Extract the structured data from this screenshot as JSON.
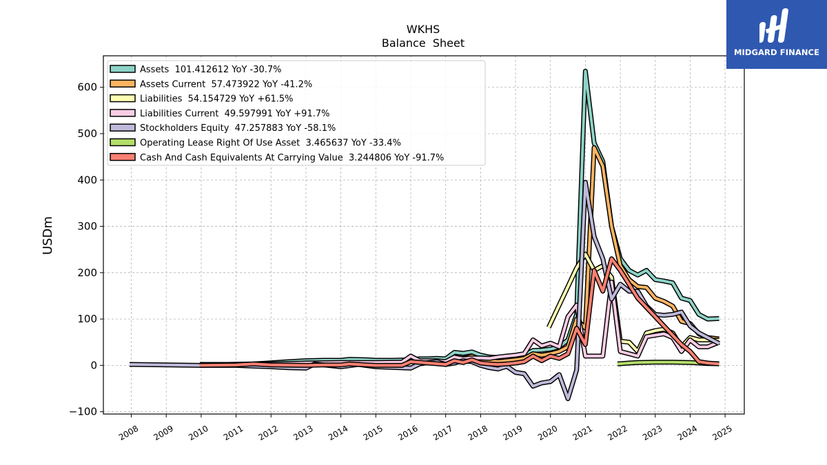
{
  "chart_data": {
    "type": "line",
    "title": "WKHS",
    "subtitle": "Balance  Sheet",
    "ylabel": "USDm",
    "xlabel": "",
    "xlim": [
      2007.2,
      2025.55
    ],
    "ylim": [
      -105,
      668
    ],
    "grid": true,
    "legend_position": "top-left",
    "x_ticks": [
      2008,
      2009,
      2010,
      2011,
      2012,
      2013,
      2014,
      2015,
      2016,
      2017,
      2018,
      2019,
      2020,
      2021,
      2022,
      2023,
      2024,
      2025
    ],
    "y_ticks": [
      -100,
      0,
      100,
      200,
      300,
      400,
      500,
      600
    ],
    "series": [
      {
        "name": "Assets",
        "legend": "Assets  101.412612 YoY -30.7%",
        "color": "#8dd3c7",
        "points": [
          [
            2009.96,
            2
          ],
          [
            2010.75,
            2
          ],
          [
            2011.5,
            3
          ],
          [
            2012.5,
            8
          ],
          [
            2013,
            10
          ],
          [
            2013.5,
            11
          ],
          [
            2014,
            11
          ],
          [
            2014.25,
            13
          ],
          [
            2014.75,
            12
          ],
          [
            2015,
            11
          ],
          [
            2015.5,
            11
          ],
          [
            2016,
            12
          ],
          [
            2016.25,
            14
          ],
          [
            2016.5,
            14
          ],
          [
            2016.75,
            15
          ],
          [
            2017,
            14
          ],
          [
            2017.25,
            28
          ],
          [
            2017.5,
            26
          ],
          [
            2017.75,
            29
          ],
          [
            2018,
            22
          ],
          [
            2018.25,
            18
          ],
          [
            2018.5,
            17
          ],
          [
            2018.75,
            17
          ],
          [
            2019,
            20
          ],
          [
            2019.25,
            22
          ],
          [
            2019.5,
            32
          ],
          [
            2019.75,
            33
          ],
          [
            2020,
            35
          ],
          [
            2020.25,
            40
          ],
          [
            2020.5,
            55
          ],
          [
            2020.75,
            110
          ],
          [
            2021,
            635
          ],
          [
            2021.25,
            480
          ],
          [
            2021.5,
            440
          ],
          [
            2021.75,
            300
          ],
          [
            2022,
            230
          ],
          [
            2022.25,
            205
          ],
          [
            2022.5,
            195
          ],
          [
            2022.75,
            205
          ],
          [
            2023,
            185
          ],
          [
            2023.25,
            182
          ],
          [
            2023.5,
            178
          ],
          [
            2023.75,
            145
          ],
          [
            2024,
            140
          ],
          [
            2024.25,
            110
          ],
          [
            2024.5,
            100
          ],
          [
            2024.83,
            101
          ]
        ]
      },
      {
        "name": "Assets Current",
        "legend": "Assets Current  57.473922 YoY -41.2%",
        "color": "#fdb462",
        "points": [
          [
            2016,
            10
          ],
          [
            2016.5,
            8
          ],
          [
            2017,
            6
          ],
          [
            2017.25,
            18
          ],
          [
            2017.5,
            15
          ],
          [
            2017.75,
            20
          ],
          [
            2018,
            12
          ],
          [
            2018.25,
            10
          ],
          [
            2018.5,
            8
          ],
          [
            2018.75,
            10
          ],
          [
            2019,
            12
          ],
          [
            2019.25,
            15
          ],
          [
            2019.5,
            25
          ],
          [
            2019.75,
            22
          ],
          [
            2020,
            25
          ],
          [
            2020.25,
            30
          ],
          [
            2020.5,
            40
          ],
          [
            2020.75,
            100
          ],
          [
            2021,
            80
          ],
          [
            2021.25,
            470
          ],
          [
            2021.5,
            430
          ],
          [
            2021.75,
            300
          ],
          [
            2022,
            215
          ],
          [
            2022.25,
            185
          ],
          [
            2022.5,
            170
          ],
          [
            2022.75,
            168
          ],
          [
            2023,
            145
          ],
          [
            2023.25,
            138
          ],
          [
            2023.5,
            128
          ],
          [
            2023.75,
            95
          ],
          [
            2024,
            90
          ],
          [
            2024.25,
            68
          ],
          [
            2024.5,
            60
          ],
          [
            2024.83,
            57
          ]
        ]
      },
      {
        "name": "Liabilities",
        "legend": "Liabilities  54.154729 YoY +61.5%",
        "color": "#ffffb3",
        "points": [
          [
            2019.95,
            82
          ],
          [
            2020.25,
            130
          ],
          [
            2020.5,
            170
          ],
          [
            2020.75,
            210
          ],
          [
            2021,
            240
          ],
          [
            2021.25,
            205
          ],
          [
            2021.5,
            215
          ],
          [
            2021.75,
            190
          ],
          [
            2022,
            52
          ],
          [
            2022.25,
            50
          ],
          [
            2022.5,
            30
          ],
          [
            2022.75,
            70
          ],
          [
            2023,
            75
          ],
          [
            2023.25,
            78
          ],
          [
            2023.5,
            70
          ],
          [
            2023.75,
            40
          ],
          [
            2024,
            60
          ],
          [
            2024.25,
            55
          ],
          [
            2024.5,
            55
          ],
          [
            2024.83,
            54
          ]
        ]
      },
      {
        "name": "Liabilities Current",
        "legend": "Liabilities Current  49.597991 YoY +91.7%",
        "color": "#fccde5",
        "points": [
          [
            2009.96,
            0
          ],
          [
            2011,
            2
          ],
          [
            2012,
            3
          ],
          [
            2013,
            5
          ],
          [
            2014,
            6
          ],
          [
            2015,
            6
          ],
          [
            2015.75,
            7
          ],
          [
            2016,
            20
          ],
          [
            2016.25,
            10
          ],
          [
            2016.5,
            10
          ],
          [
            2016.75,
            10
          ],
          [
            2017,
            8
          ],
          [
            2017.25,
            18
          ],
          [
            2017.5,
            14
          ],
          [
            2017.75,
            16
          ],
          [
            2018,
            16
          ],
          [
            2018.25,
            15
          ],
          [
            2018.5,
            18
          ],
          [
            2018.75,
            20
          ],
          [
            2019,
            22
          ],
          [
            2019.25,
            25
          ],
          [
            2019.5,
            55
          ],
          [
            2019.75,
            42
          ],
          [
            2020,
            48
          ],
          [
            2020.25,
            40
          ],
          [
            2020.5,
            105
          ],
          [
            2020.75,
            130
          ],
          [
            2021,
            20
          ],
          [
            2021.25,
            20
          ],
          [
            2021.5,
            20
          ],
          [
            2021.75,
            180
          ],
          [
            2022,
            30
          ],
          [
            2022.25,
            25
          ],
          [
            2022.5,
            20
          ],
          [
            2022.75,
            62
          ],
          [
            2023,
            65
          ],
          [
            2023.25,
            68
          ],
          [
            2023.5,
            60
          ],
          [
            2023.75,
            30
          ],
          [
            2024,
            55
          ],
          [
            2024.25,
            40
          ],
          [
            2024.5,
            40
          ],
          [
            2024.83,
            50
          ]
        ]
      },
      {
        "name": "Stockholders Equity",
        "legend": "Stockholders Equity  47.257883 YoY -58.1%",
        "color": "#bebada",
        "points": [
          [
            2007.95,
            2
          ],
          [
            2009.96,
            0
          ],
          [
            2011,
            0
          ],
          [
            2012,
            -3
          ],
          [
            2012.5,
            -5
          ],
          [
            2013,
            -6
          ],
          [
            2013.25,
            3
          ],
          [
            2014,
            -3
          ],
          [
            2014.5,
            2
          ],
          [
            2015,
            -3
          ],
          [
            2016,
            -6
          ],
          [
            2016.25,
            3
          ],
          [
            2016.5,
            6
          ],
          [
            2016.75,
            8
          ],
          [
            2017,
            2
          ],
          [
            2017.25,
            5
          ],
          [
            2017.5,
            10
          ],
          [
            2017.75,
            8
          ],
          [
            2018,
            0
          ],
          [
            2018.25,
            -5
          ],
          [
            2018.5,
            -8
          ],
          [
            2018.75,
            -2
          ],
          [
            2019,
            -15
          ],
          [
            2019.25,
            -18
          ],
          [
            2019.5,
            -45
          ],
          [
            2019.75,
            -38
          ],
          [
            2020,
            -35
          ],
          [
            2020.25,
            -20
          ],
          [
            2020.5,
            -72
          ],
          [
            2020.75,
            -10
          ],
          [
            2021,
            395
          ],
          [
            2021.25,
            278
          ],
          [
            2021.5,
            230
          ],
          [
            2021.75,
            143
          ],
          [
            2022,
            175
          ],
          [
            2022.25,
            160
          ],
          [
            2022.5,
            160
          ],
          [
            2022.75,
            128
          ],
          [
            2023,
            110
          ],
          [
            2023.25,
            108
          ],
          [
            2023.5,
            110
          ],
          [
            2023.75,
            115
          ],
          [
            2024,
            85
          ],
          [
            2024.25,
            70
          ],
          [
            2024.5,
            60
          ],
          [
            2024.83,
            47
          ]
        ]
      },
      {
        "name": "Operating Lease Right Of Use Asset",
        "legend": "Operating Lease Right Of Use Asset  3.465637 YoY -33.4%",
        "color": "#b3de69",
        "points": [
          [
            2021.92,
            3
          ],
          [
            2022.25,
            5
          ],
          [
            2022.5,
            6
          ],
          [
            2023,
            7
          ],
          [
            2023.5,
            7
          ],
          [
            2024,
            6
          ],
          [
            2024.5,
            4
          ],
          [
            2024.83,
            3.5
          ]
        ]
      },
      {
        "name": "Cash And Cash Equivalents At Carrying Value",
        "legend": "Cash And Cash Equivalents At Carrying Value  3.244806 YoY -91.7%",
        "color": "#fb8072",
        "points": [
          [
            2009.96,
            0
          ],
          [
            2011,
            1
          ],
          [
            2011.5,
            3
          ],
          [
            2012,
            1
          ],
          [
            2013,
            0
          ],
          [
            2013.5,
            1
          ],
          [
            2014,
            1
          ],
          [
            2014.25,
            3
          ],
          [
            2014.75,
            1
          ],
          [
            2015,
            0
          ],
          [
            2015.75,
            0
          ],
          [
            2016,
            8
          ],
          [
            2016.5,
            5
          ],
          [
            2017,
            2
          ],
          [
            2017.25,
            10
          ],
          [
            2017.5,
            6
          ],
          [
            2017.75,
            12
          ],
          [
            2018,
            5
          ],
          [
            2018.25,
            3
          ],
          [
            2018.5,
            2
          ],
          [
            2018.75,
            3
          ],
          [
            2019,
            5
          ],
          [
            2019.25,
            8
          ],
          [
            2019.5,
            20
          ],
          [
            2019.75,
            10
          ],
          [
            2020,
            20
          ],
          [
            2020.25,
            15
          ],
          [
            2020.5,
            25
          ],
          [
            2020.75,
            80
          ],
          [
            2021,
            45
          ],
          [
            2021.25,
            205
          ],
          [
            2021.5,
            160
          ],
          [
            2021.75,
            230
          ],
          [
            2022,
            205
          ],
          [
            2022.25,
            175
          ],
          [
            2022.5,
            145
          ],
          [
            2022.75,
            125
          ],
          [
            2023,
            105
          ],
          [
            2023.25,
            85
          ],
          [
            2023.5,
            65
          ],
          [
            2023.75,
            45
          ],
          [
            2024,
            30
          ],
          [
            2024.25,
            8
          ],
          [
            2024.5,
            5
          ],
          [
            2024.83,
            3.2
          ]
        ]
      }
    ]
  },
  "logo": {
    "text": "MIDGARD FINANCE",
    "background": "#2f58b0"
  }
}
